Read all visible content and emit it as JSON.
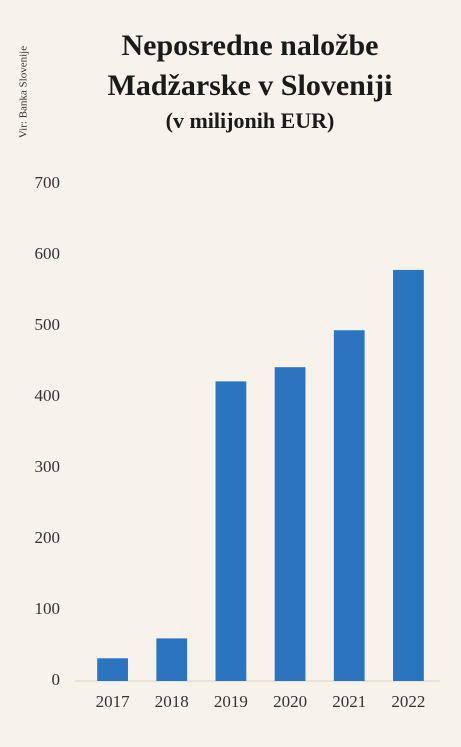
{
  "chart_data": {
    "type": "bar",
    "title": "Neposredne naložbe Madžarske v Sloveniji",
    "subtitle": "(v milijonih EUR)",
    "source": "Vir: Banka Slovenije",
    "categories": [
      "2017",
      "2018",
      "2019",
      "2020",
      "2021",
      "2022"
    ],
    "values": [
      32,
      60,
      422,
      442,
      494,
      579
    ],
    "color": "#2b74bf",
    "ylim": [
      0,
      700
    ],
    "yticks": [
      0,
      100,
      200,
      300,
      400,
      500,
      600,
      700
    ],
    "grid": false
  }
}
